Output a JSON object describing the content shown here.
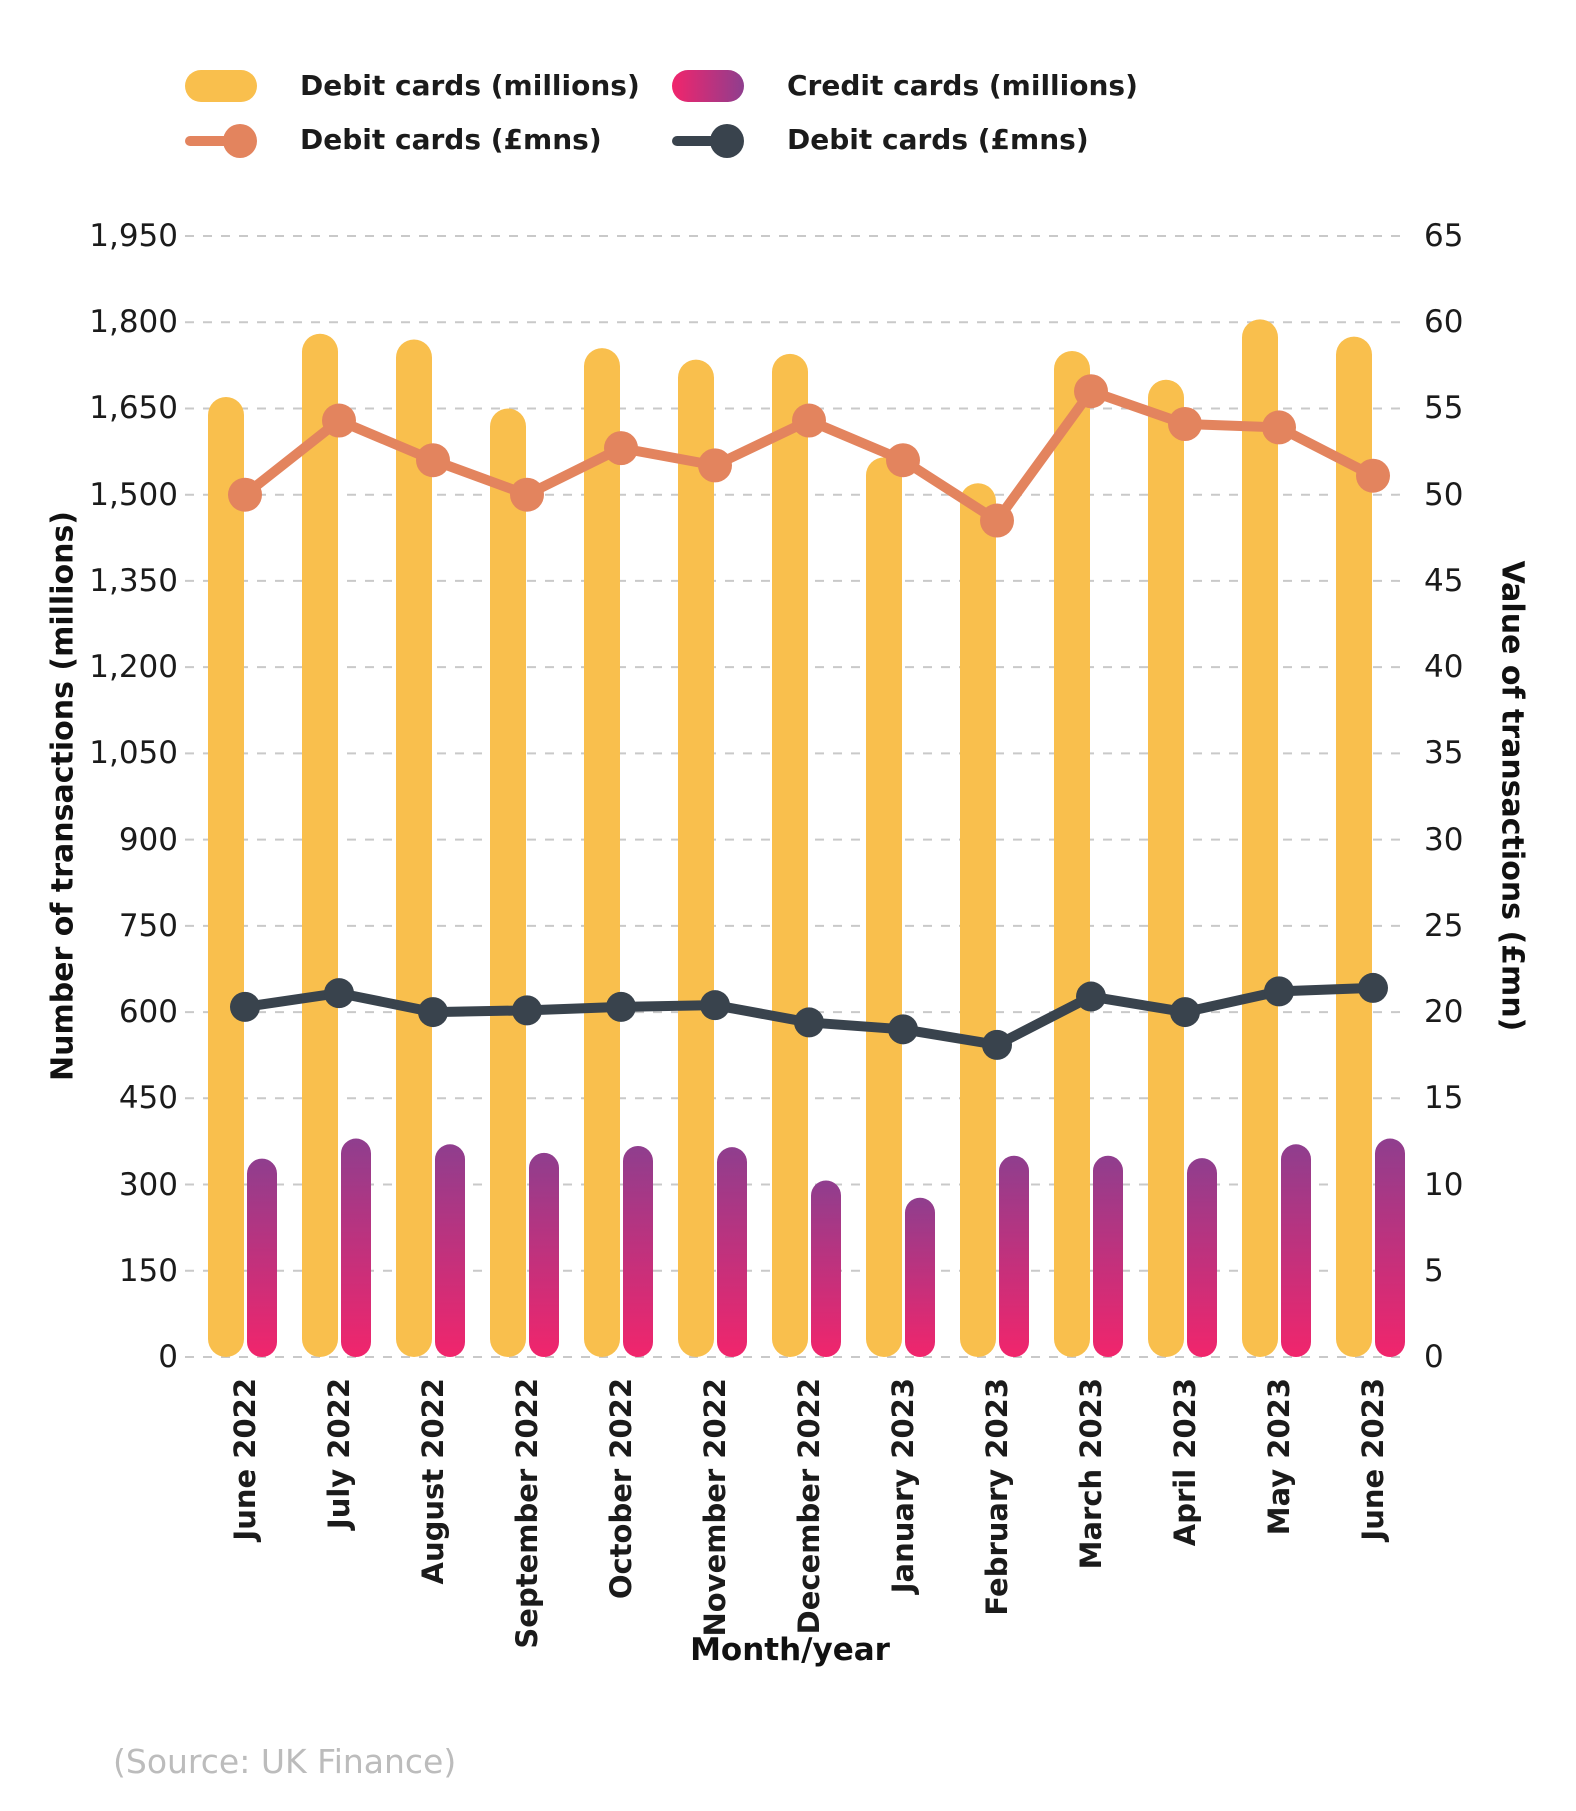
{
  "legend": {
    "items": [
      {
        "label": "Debit cards (millions)",
        "marker": "bar",
        "color": "#F9BF4D"
      },
      {
        "label": "Credit cards (millions)",
        "marker": "bar-gradient",
        "gradient_left": "#F1256C",
        "gradient_right": "#8F3E8E"
      },
      {
        "label": "Debit cards (£mns)",
        "marker": "line",
        "color": "#E3845E"
      },
      {
        "label": "Debit cards (£mns)",
        "marker": "line",
        "color": "#39434D"
      }
    ]
  },
  "chart_data": {
    "type": "bar",
    "subtype": "grouped-bars-with-lines",
    "categories": [
      "June 2022",
      "July 2022",
      "August 2022",
      "September 2022",
      "October 2022",
      "November 2022",
      "December 2022",
      "January 2023",
      "February 2023",
      "March 2023",
      "April 2023",
      "May 2023",
      "June 2023"
    ],
    "series": [
      {
        "name": "Debit cards (millions)",
        "type": "bar",
        "axis": "left",
        "color": "#F9BF4D",
        "values": [
          1670,
          1780,
          1770,
          1650,
          1755,
          1735,
          1745,
          1565,
          1520,
          1750,
          1700,
          1805,
          1775
        ]
      },
      {
        "name": "Credit cards (millions)",
        "type": "bar",
        "axis": "left",
        "gradient_top": "#8F3E8E",
        "gradient_bottom": "#F1256C",
        "values": [
          345,
          380,
          370,
          355,
          367,
          365,
          307,
          277,
          350,
          350,
          346,
          370,
          380
        ]
      },
      {
        "name": "Debit cards (£mns)",
        "type": "line",
        "axis": "right",
        "color": "#E3845E",
        "values": [
          50,
          54.3,
          52,
          50,
          52.7,
          51.7,
          54.3,
          52,
          48.5,
          56,
          54.1,
          53.9,
          51.1
        ]
      },
      {
        "name": "Debit cards (£mns)",
        "type": "line",
        "axis": "right",
        "color": "#39434D",
        "values": [
          20.3,
          21.1,
          20,
          20.1,
          20.3,
          20.4,
          19.4,
          19,
          18.1,
          20.9,
          20,
          21.2,
          21.4
        ]
      }
    ],
    "left_axis": {
      "label": "Number of transactions (millions)",
      "min": 0,
      "max": 1950,
      "step": 150,
      "tick_labels": [
        "0",
        "150",
        "300",
        "450",
        "600",
        "750",
        "900",
        "1,050",
        "1,200",
        "1,350",
        "1,500",
        "1,650",
        "1,800",
        "1,950"
      ]
    },
    "right_axis": {
      "label": "Value of transactions (£mn)",
      "min": 0,
      "max": 65,
      "step": 5,
      "tick_labels": [
        "0",
        "5",
        "10",
        "15",
        "20",
        "25",
        "30",
        "35",
        "40",
        "45",
        "50",
        "55",
        "60",
        "65"
      ]
    },
    "xlabel": "Month/year",
    "grid": "horizontal-dashed",
    "grid_color": "#c9c9c9",
    "legend_position": "top"
  },
  "source": "(Source: UK Finance)"
}
